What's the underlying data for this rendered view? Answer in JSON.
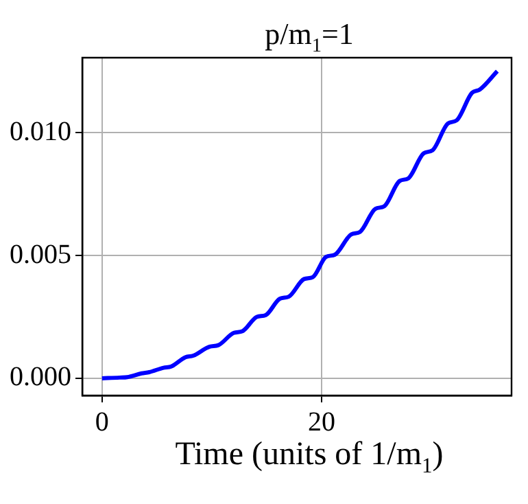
{
  "chart_data": {
    "type": "line",
    "title": "p/m$_{1}$=1",
    "xlabel": "Time (units of 1/m$_{1}$)",
    "x": [
      0,
      1.6,
      2.3,
      3.6,
      4.3,
      5.6,
      6.3,
      7.6,
      8.3,
      9.8,
      10.6,
      12.0,
      12.8,
      14.1,
      14.9,
      16.2,
      17.0,
      18.4,
      19.2,
      20.4,
      21.2,
      22.7,
      23.5,
      24.9,
      25.7,
      27.1,
      27.9,
      29.3,
      30.1,
      31.5,
      32.3,
      33.7,
      34.4,
      36.0
    ],
    "series": [
      {
        "color": "#0000ff",
        "values": [
          0,
          3e-05,
          5e-05,
          0.0002,
          0.00025,
          0.00043,
          0.00048,
          0.00086,
          0.00092,
          0.00129,
          0.00135,
          0.00185,
          0.00192,
          0.0025,
          0.00257,
          0.00324,
          0.00332,
          0.00404,
          0.00412,
          0.00494,
          0.00503,
          0.00586,
          0.00596,
          0.0069,
          0.007,
          0.00803,
          0.00814,
          0.00916,
          0.00928,
          0.01037,
          0.0105,
          0.01162,
          0.01175,
          0.0125
        ]
      }
    ],
    "xlim": [
      -1.8,
      37.3
    ],
    "ylim": [
      -0.0007,
      0.01305
    ],
    "xticks": [
      0,
      20
    ],
    "yticks": [
      {
        "value": 0,
        "label": "0.000"
      },
      {
        "value": 0.005,
        "label": "0.005"
      },
      {
        "value": 0.01,
        "label": "0.010"
      }
    ],
    "grid": true,
    "legend": false,
    "marker": "none",
    "line_style": "solid"
  }
}
